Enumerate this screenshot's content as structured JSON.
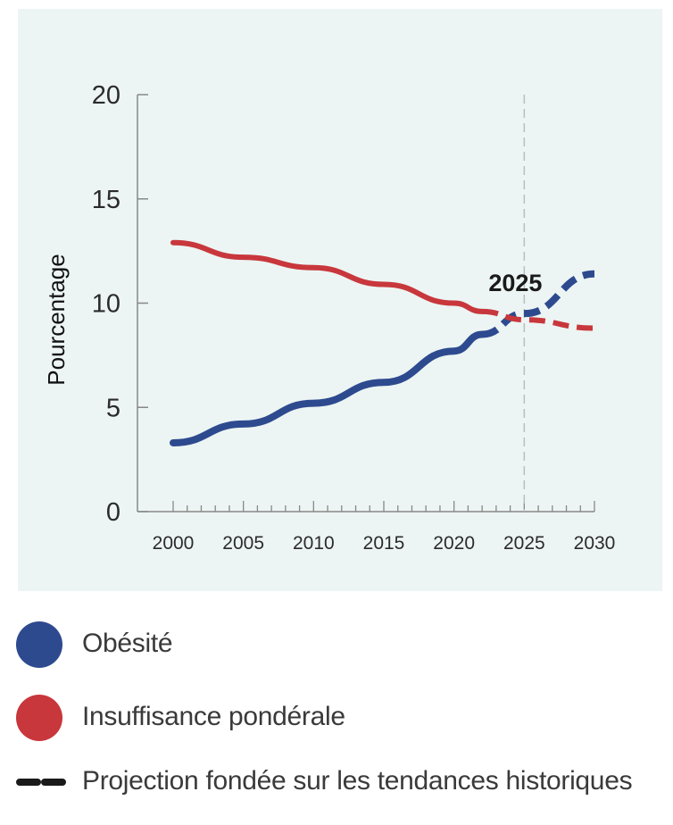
{
  "chart_data": {
    "type": "line",
    "title": "",
    "xlabel": "",
    "ylabel": "Pourcentage",
    "xlim": [
      2000,
      2030
    ],
    "ylim": [
      0,
      20
    ],
    "x_ticks": [
      "2000",
      "2005",
      "2010",
      "2015",
      "2020",
      "2025",
      "2030"
    ],
    "y_ticks": [
      "0",
      "5",
      "10",
      "15",
      "20"
    ],
    "projection_start": 2025,
    "annotation": "2025",
    "series": [
      {
        "name": "Obésité",
        "color": "#2e4a8f",
        "x": [
          2000,
          2005,
          2010,
          2015,
          2020,
          2022,
          2025,
          2030
        ],
        "values": [
          3.3,
          4.2,
          5.2,
          6.2,
          7.7,
          8.5,
          9.5,
          11.4
        ],
        "projected_from": 2022
      },
      {
        "name": "Insuffisance pondérale",
        "color": "#c8373c",
        "x": [
          2000,
          2005,
          2010,
          2015,
          2020,
          2022,
          2025,
          2030
        ],
        "values": [
          12.9,
          12.2,
          11.7,
          10.9,
          10.0,
          9.6,
          9.2,
          8.8
        ],
        "projected_from": 2022
      }
    ]
  },
  "legend": {
    "obesity": "Obésité",
    "underweight": "Insuffisance pondérale",
    "projection": "Projection fondée sur les tendances historiques"
  }
}
